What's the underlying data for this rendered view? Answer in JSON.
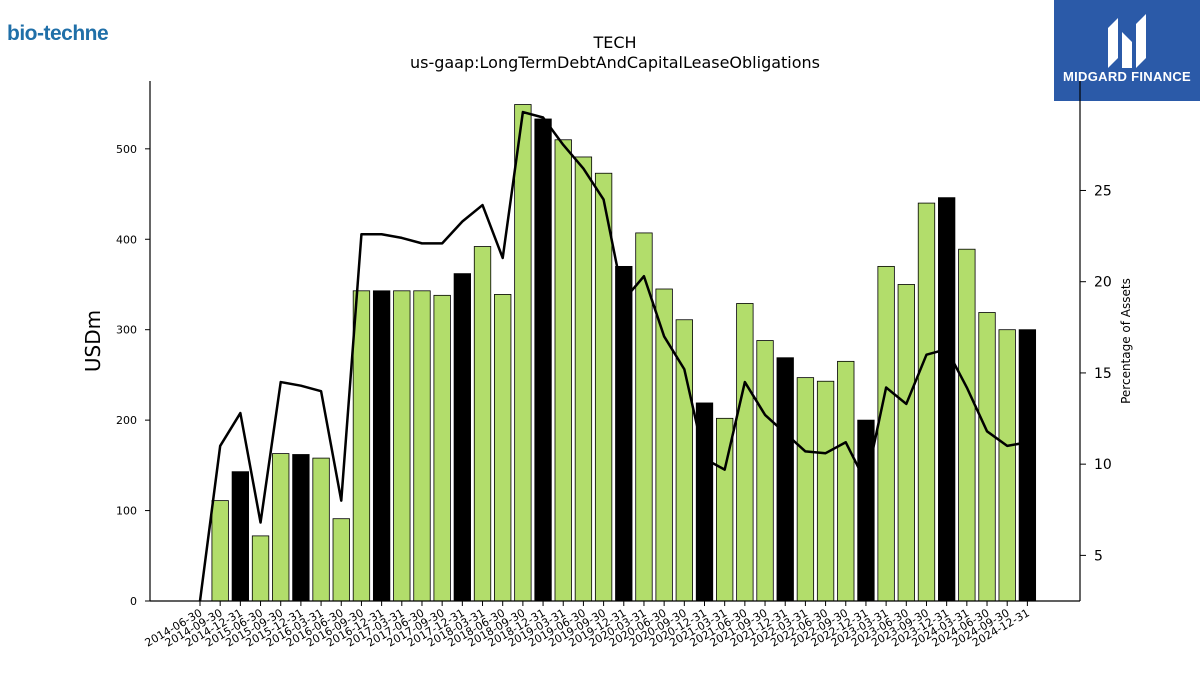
{
  "branding": {
    "company_logo_text": "bio-techne",
    "publisher_name": "MIDGARD FINANCE",
    "publisher_color": "#2b5aa8"
  },
  "chart_data": {
    "type": "bar",
    "title": "TECH",
    "subtitle": "us-gaap:LongTermDebtAndCapitalLeaseObligations",
    "ylabel": "USDm",
    "y2label": "Percentage of Assets",
    "ylim": [
      0,
      575
    ],
    "y2lim": [
      2.5,
      31
    ],
    "yticks": [
      0,
      100,
      200,
      300,
      400,
      500
    ],
    "y2ticks": [
      5,
      10,
      15,
      20,
      25
    ],
    "grid": false,
    "colors": {
      "quarter_bar": "#b2dd6b",
      "year_end_bar": "#000000",
      "line": "#000000"
    },
    "categories": [
      "2014-06-30",
      "2014-09-30",
      "2014-12-31",
      "2015-06-30",
      "2015-09-30",
      "2015-12-31",
      "2016-03-31",
      "2016-06-30",
      "2016-09-30",
      "2016-12-31",
      "2017-03-31",
      "2017-06-30",
      "2017-09-30",
      "2017-12-31",
      "2018-03-31",
      "2018-06-30",
      "2018-09-30",
      "2018-12-31",
      "2019-03-31",
      "2019-06-30",
      "2019-09-30",
      "2019-12-31",
      "2020-03-31",
      "2020-06-30",
      "2020-09-30",
      "2020-12-31",
      "2021-03-31",
      "2021-06-30",
      "2021-09-30",
      "2021-12-31",
      "2022-03-31",
      "2022-06-30",
      "2022-09-30",
      "2022-12-31",
      "2023-03-31",
      "2023-06-30",
      "2023-09-30",
      "2023-12-31",
      "2024-03-31",
      "2024-06-30",
      "2024-09-30",
      "2024-12-31"
    ],
    "series": [
      {
        "type": "bar",
        "values": [
          0,
          111,
          143,
          72,
          163,
          162,
          158,
          91,
          343,
          343,
          343,
          343,
          338,
          362,
          392,
          339,
          549,
          533,
          510,
          491,
          473,
          370,
          407,
          345,
          311,
          219,
          202,
          329,
          288,
          269,
          247,
          243,
          265,
          200,
          370,
          350,
          440,
          446,
          389,
          319,
          300,
          300
        ],
        "year_end": [
          false,
          false,
          true,
          false,
          false,
          true,
          false,
          false,
          false,
          true,
          false,
          false,
          false,
          true,
          false,
          false,
          false,
          true,
          false,
          false,
          false,
          true,
          false,
          false,
          false,
          true,
          false,
          false,
          false,
          true,
          false,
          false,
          false,
          true,
          false,
          false,
          false,
          true,
          false,
          false,
          false,
          true
        ]
      },
      {
        "type": "line",
        "axis": "right",
        "values": [
          2.5,
          11.0,
          12.8,
          6.8,
          14.5,
          14.3,
          14.0,
          8.0,
          22.6,
          22.6,
          22.4,
          22.1,
          22.1,
          23.3,
          24.2,
          21.3,
          29.3,
          29.0,
          27.5,
          26.2,
          24.5,
          19.0,
          20.3,
          17.0,
          15.2,
          10.3,
          9.7,
          14.5,
          12.7,
          11.7,
          10.7,
          10.6,
          11.2,
          9.0,
          14.2,
          13.3,
          16.0,
          16.3,
          14.2,
          11.8,
          11.0,
          11.2
        ]
      }
    ]
  }
}
